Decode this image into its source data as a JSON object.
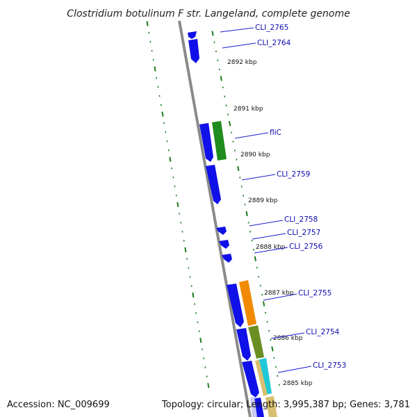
{
  "title": "Clostridium botulinum F str. Langeland, complete genome",
  "footer": {
    "accession": "Accession: NC_009699",
    "stats": "Topology: circular; Length: 3,995,387 bp; Genes: 3,781"
  },
  "kbp_labels": [
    "2892 kbp",
    "2891 kbp",
    "2890 kbp",
    "2889 kbp",
    "2888 kbp",
    "2887 kbp",
    "2886 kbp",
    "2885 kbp"
  ],
  "gene_labels": [
    "CLI_2765",
    "CLI_2764",
    "fliC",
    "CLI_2759",
    "CLI_2758",
    "CLI_2757",
    "CLI_2756",
    "CLI_2755",
    "CLI_2754",
    "CLI_2753"
  ],
  "colors": {
    "backbone": "#8a8a8a",
    "gene_cds": "#1010e8",
    "feature_green": "#1e8c1e",
    "feature_orange": "#f08a00",
    "feature_olive": "#6b8e23",
    "feature_cyan": "#20c8d8",
    "feature_khaki": "#d8c070",
    "feature_lavender": "#c8c8f0",
    "tick": "#1b7a1b",
    "label_text": "#0a0ab0"
  }
}
